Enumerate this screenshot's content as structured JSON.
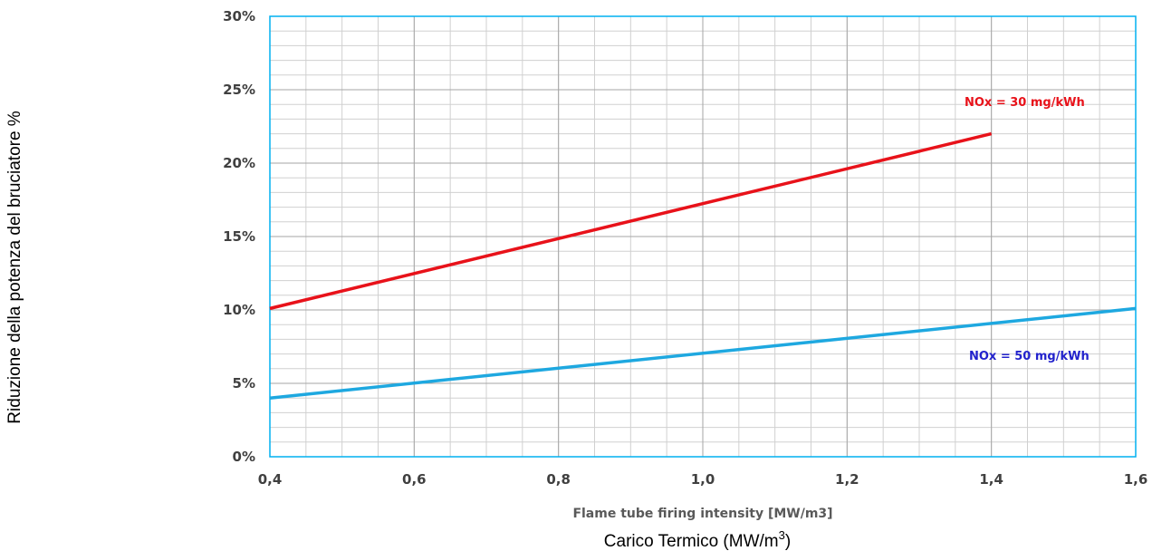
{
  "chart_data": {
    "type": "line",
    "xlabel": "Flame tube firing intensity [MW/m3]",
    "xlabel_secondary_base": "Carico Termico  (MW/m",
    "xlabel_secondary_sup": "3",
    "xlabel_secondary_close": ")",
    "ylabel": "Riduzione della potenza del bruciatore %",
    "xlim": [
      0.4,
      1.6
    ],
    "ylim": [
      0,
      30
    ],
    "x_ticks": [
      "0,4",
      "0,6",
      "0,8",
      "1,0",
      "1,2",
      "1,4",
      "1,6"
    ],
    "x_tick_values": [
      0.4,
      0.6,
      0.8,
      1.0,
      1.2,
      1.4,
      1.6
    ],
    "y_ticks": [
      "0%",
      "5%",
      "10%",
      "15%",
      "20%",
      "25%",
      "30%"
    ],
    "y_tick_values": [
      0,
      5,
      10,
      15,
      20,
      25,
      30
    ],
    "grid": true,
    "series": [
      {
        "name": "NOx = 30 mg/kWh",
        "color": "#e8121a",
        "label_color": "#e8121a",
        "x": [
          0.4,
          1.4
        ],
        "y": [
          10.1,
          22.0
        ]
      },
      {
        "name": "NOx = 50 mg/kWh",
        "color": "#1ea8e0",
        "label_color": "#2222cc",
        "x": [
          0.4,
          1.6
        ],
        "y": [
          4.0,
          10.1
        ]
      }
    ]
  }
}
